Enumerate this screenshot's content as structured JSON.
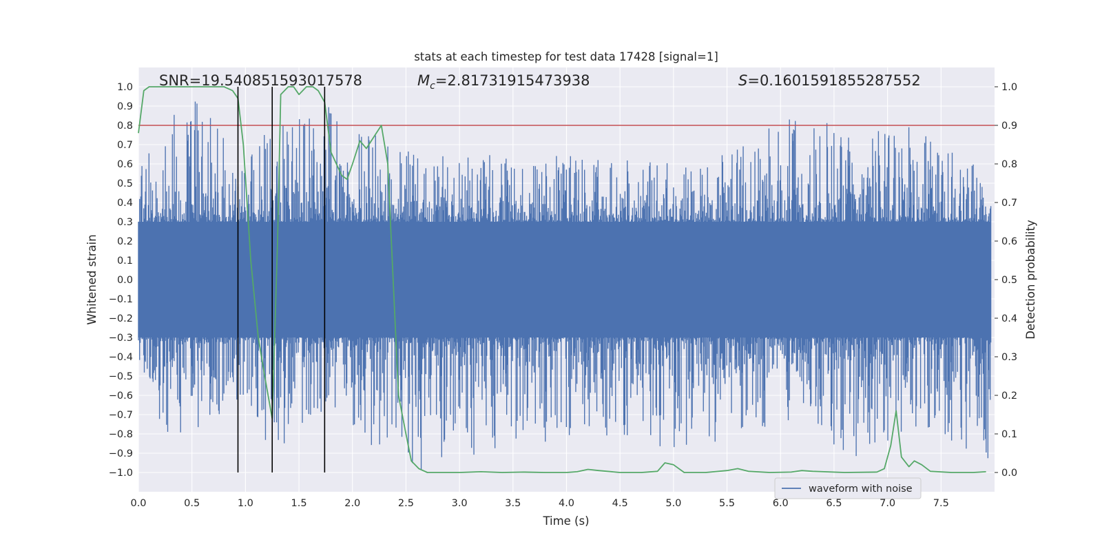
{
  "chart_data": {
    "type": "line",
    "title": "stats at each timestep for test data 17428 [signal=1]",
    "xlabel": "Time (s)",
    "ylabel": "Whitened strain",
    "y2label": "Detection probability",
    "xlim": [
      0,
      8.0
    ],
    "ylim": [
      -1.1,
      1.1
    ],
    "y2lim": [
      -0.05,
      1.05
    ],
    "xticks": [
      "0.0",
      "0.5",
      "1.0",
      "1.5",
      "2.0",
      "2.5",
      "3.0",
      "3.5",
      "4.0",
      "4.5",
      "5.0",
      "5.5",
      "6.0",
      "6.5",
      "7.0",
      "7.5"
    ],
    "yticks": [
      "−1.0",
      "−0.9",
      "−0.8",
      "−0.7",
      "−0.6",
      "−0.5",
      "−0.4",
      "−0.3",
      "−0.2",
      "−0.1",
      "0.0",
      "0.1",
      "0.2",
      "0.3",
      "0.4",
      "0.5",
      "0.6",
      "0.7",
      "0.8",
      "0.9",
      "1.0"
    ],
    "y2ticks": [
      "0.0",
      "0.1",
      "0.2",
      "0.3",
      "0.4",
      "0.5",
      "0.6",
      "0.7",
      "0.8",
      "0.9",
      "1.0"
    ],
    "grid": true,
    "legend_position": "lower-right",
    "annotations": {
      "snr": "SNR=19.540851593017578",
      "mc_symbol": "M",
      "mc_sub": "c",
      "mc_value": "=2.81731915473938",
      "s_symbol": "S",
      "s_value": "=0.1601591855287552"
    },
    "threshold": {
      "y2": 0.9,
      "color": "#c44e52"
    },
    "vertical_markers_x": [
      0.93,
      1.25,
      1.74
    ],
    "series": [
      {
        "name": "waveform with noise",
        "axis": "left",
        "color": "#4c72b0",
        "style": "noise-trace",
        "envelope": [
          {
            "x": 0.0,
            "max": 0.55,
            "min": -0.5
          },
          {
            "x": 0.35,
            "max": 1.0,
            "min": -0.93
          },
          {
            "x": 0.55,
            "max": 0.95,
            "min": -0.8
          },
          {
            "x": 1.0,
            "max": 0.6,
            "min": -0.65
          },
          {
            "x": 1.25,
            "max": 0.82,
            "min": -0.91
          },
          {
            "x": 1.75,
            "max": 0.92,
            "min": -0.72
          },
          {
            "x": 2.6,
            "max": 0.65,
            "min": -1.0
          },
          {
            "x": 4.0,
            "max": 0.65,
            "min": -0.82
          },
          {
            "x": 5.2,
            "max": 0.6,
            "min": -0.9
          },
          {
            "x": 6.3,
            "max": 0.9,
            "min": -0.7
          },
          {
            "x": 6.6,
            "max": 0.75,
            "min": -0.98
          },
          {
            "x": 7.3,
            "max": 0.8,
            "min": -0.75
          },
          {
            "x": 7.9,
            "max": 0.6,
            "min": -0.93
          }
        ]
      },
      {
        "name": "",
        "axis": "right",
        "color": "#55a868",
        "x": [
          0.0,
          0.05,
          0.1,
          0.2,
          0.3,
          0.4,
          0.5,
          0.6,
          0.7,
          0.8,
          0.88,
          0.93,
          0.98,
          1.05,
          1.12,
          1.18,
          1.25,
          1.3,
          1.33,
          1.4,
          1.45,
          1.5,
          1.57,
          1.63,
          1.68,
          1.74,
          1.8,
          1.85,
          1.9,
          1.95,
          2.0,
          2.07,
          2.13,
          2.2,
          2.27,
          2.33,
          2.38,
          2.43,
          2.5,
          2.55,
          2.62,
          2.7,
          2.8,
          3.0,
          3.2,
          3.4,
          3.6,
          3.8,
          4.0,
          4.1,
          4.2,
          4.3,
          4.5,
          4.7,
          4.85,
          4.92,
          5.0,
          5.1,
          5.3,
          5.5,
          5.6,
          5.7,
          5.9,
          6.1,
          6.2,
          6.3,
          6.6,
          6.9,
          6.97,
          7.03,
          7.08,
          7.13,
          7.2,
          7.25,
          7.32,
          7.4,
          7.6,
          7.8,
          7.92
        ],
        "values": [
          0.88,
          0.99,
          1.0,
          1.0,
          1.0,
          1.0,
          1.0,
          1.0,
          1.0,
          1.0,
          0.99,
          0.97,
          0.85,
          0.55,
          0.35,
          0.25,
          0.14,
          0.6,
          0.98,
          1.0,
          1.0,
          0.98,
          1.0,
          1.0,
          0.99,
          0.96,
          0.83,
          0.8,
          0.77,
          0.76,
          0.8,
          0.86,
          0.84,
          0.87,
          0.9,
          0.8,
          0.5,
          0.2,
          0.1,
          0.03,
          0.01,
          0.0,
          0.0,
          0.0,
          0.002,
          0.0,
          0.001,
          0.0,
          0.0,
          0.002,
          0.008,
          0.005,
          0.0,
          0.0,
          0.003,
          0.025,
          0.02,
          0.0,
          0.0,
          0.005,
          0.01,
          0.003,
          0.0,
          0.001,
          0.005,
          0.003,
          0.0,
          0.001,
          0.01,
          0.07,
          0.16,
          0.04,
          0.015,
          0.03,
          0.02,
          0.003,
          0.0,
          0.0,
          0.002
        ]
      }
    ]
  }
}
